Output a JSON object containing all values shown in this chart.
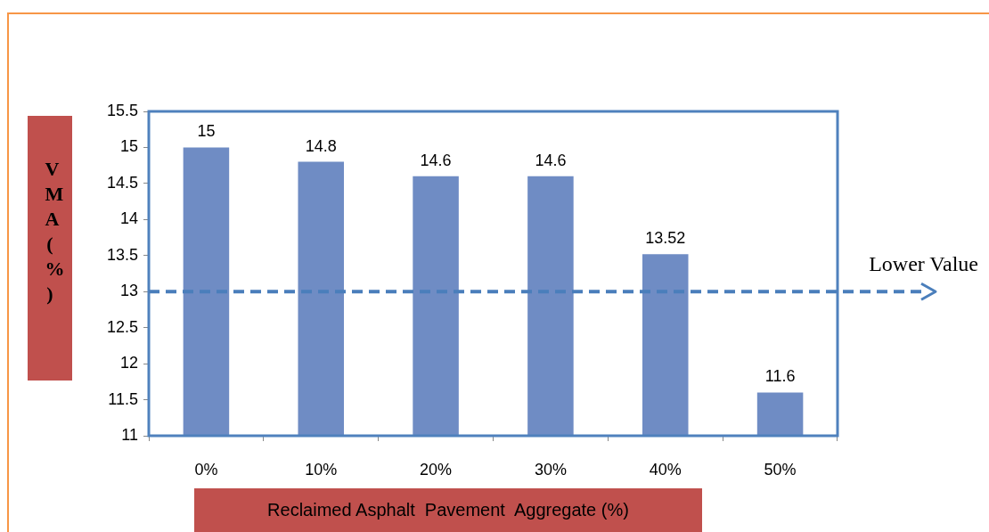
{
  "chart_data": {
    "type": "bar",
    "xlabel": "Reclaimed Asphalt  Pavement  Aggregate (%)",
    "ylabel": "VMA (%)",
    "categories": [
      "0%",
      "10%",
      "20%",
      "30%",
      "40%",
      "50%"
    ],
    "values": [
      15,
      14.8,
      14.6,
      14.6,
      13.52,
      11.6
    ],
    "color": "#6f8cc4",
    "ylim": [
      11,
      15.5
    ],
    "yticks": [
      11,
      11.5,
      12,
      12.5,
      13,
      13.5,
      14,
      14.5,
      15,
      15.5
    ],
    "grid": false,
    "legend": false,
    "data_labels": true,
    "ref_lines": [
      {
        "axis": "y",
        "value": 13,
        "label": "Lower Value",
        "color": "#4a7ebb",
        "line_style": "dashed"
      }
    ]
  }
}
